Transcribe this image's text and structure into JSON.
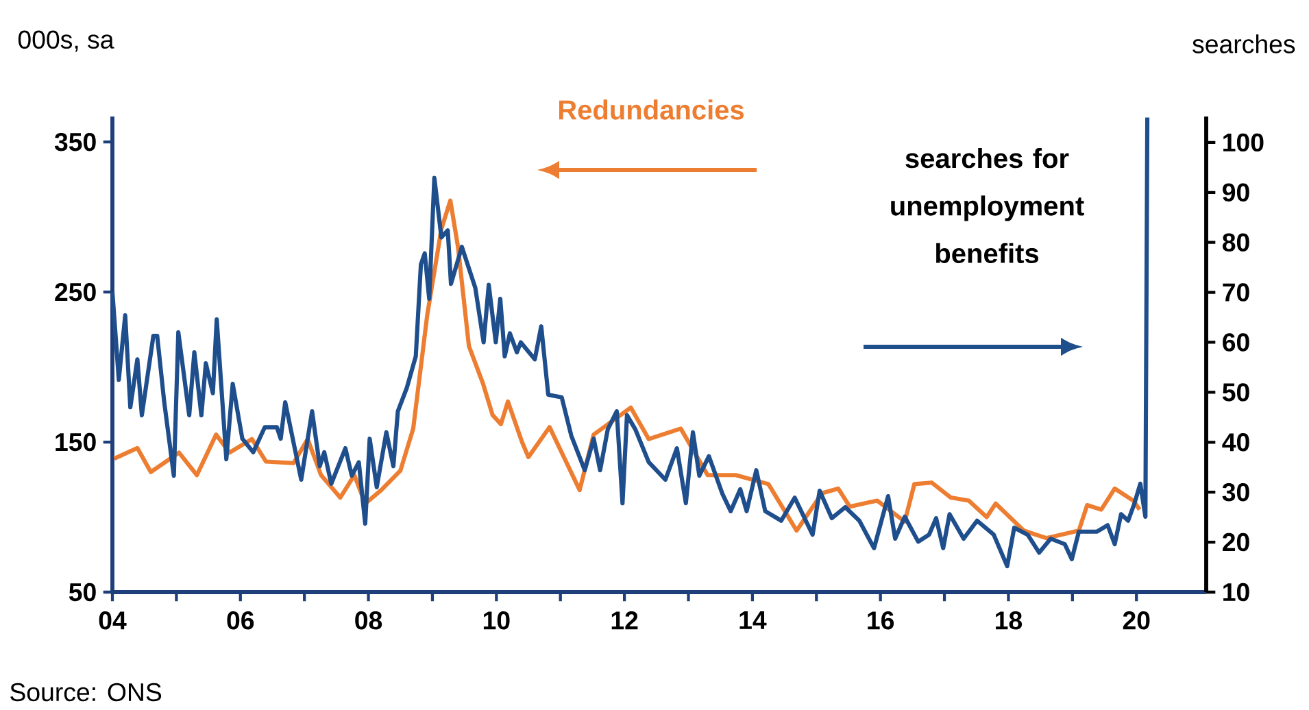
{
  "chart_data": {
    "type": "line",
    "ylabel": "000s, sa",
    "y2label": "searches",
    "annotations": [
      "Source: ONS"
    ],
    "xlim": [
      2004,
      2021.09
    ],
    "ylim": [
      50,
      367
    ],
    "y2lim": [
      10,
      105.2
    ],
    "xticks": [
      {
        "value": 2004,
        "label": "04"
      },
      {
        "value": 2005,
        "label": null
      },
      {
        "value": 2006,
        "label": "06"
      },
      {
        "value": 2007,
        "label": null
      },
      {
        "value": 2008,
        "label": "08"
      },
      {
        "value": 2009,
        "label": null
      },
      {
        "value": 2010,
        "label": "10"
      },
      {
        "value": 2011,
        "label": null
      },
      {
        "value": 2012,
        "label": "12"
      },
      {
        "value": 2013,
        "label": null
      },
      {
        "value": 2014,
        "label": "14"
      },
      {
        "value": 2015,
        "label": null
      },
      {
        "value": 2016,
        "label": "16"
      },
      {
        "value": 2017,
        "label": null
      },
      {
        "value": 2018,
        "label": "18"
      },
      {
        "value": 2019,
        "label": null
      },
      {
        "value": 2020,
        "label": "20"
      }
    ],
    "yticks": [
      50,
      150,
      250,
      350
    ],
    "y2ticks": [
      10,
      20,
      30,
      40,
      50,
      60,
      70,
      80,
      90,
      100
    ],
    "series": [
      {
        "name": "Redundancies",
        "color": "#ed7d31",
        "x": [
          2004.03,
          2004.39,
          2004.6,
          2005.04,
          2005.32,
          2005.62,
          2005.83,
          2006.18,
          2006.4,
          2006.83,
          2007.05,
          2007.26,
          2007.56,
          2007.78,
          2007.95,
          2008.2,
          2008.5,
          2008.7,
          2008.92,
          2009.14,
          2009.28,
          2009.4,
          2009.57,
          2009.79,
          2009.94,
          2010.07,
          2010.18,
          2010.4,
          2010.5,
          2010.83,
          2011.3,
          2011.52,
          2012.1,
          2012.38,
          2012.88,
          2013.3,
          2013.74,
          2014.25,
          2014.69,
          2015.09,
          2015.34,
          2015.52,
          2015.95,
          2016.38,
          2016.53,
          2016.8,
          2017.1,
          2017.38,
          2017.66,
          2017.8,
          2018.24,
          2018.59,
          2019.1,
          2019.23,
          2019.45,
          2019.66,
          2019.95,
          2020.05
        ],
        "values": [
          139,
          146,
          130,
          143,
          128,
          155,
          143,
          152,
          137,
          136,
          152,
          128,
          113,
          128,
          109,
          118,
          131,
          159,
          235,
          292,
          311,
          280,
          214,
          189,
          168,
          162,
          177,
          150,
          140,
          160,
          118,
          155,
          173,
          152,
          159,
          128,
          128,
          122,
          91,
          116,
          119,
          107,
          111,
          97,
          122,
          123,
          113,
          111,
          100,
          109,
          91,
          86,
          91,
          108,
          105,
          119,
          111,
          105
        ]
      },
      {
        "name": "searches for unemployment benefits",
        "color": "#1f4e8c",
        "axis": "y2",
        "x": [
          2004.0,
          2004.1,
          2004.2,
          2004.28,
          2004.39,
          2004.46,
          2004.64,
          2004.7,
          2004.81,
          2004.96,
          2005.03,
          2005.2,
          2005.28,
          2005.39,
          2005.46,
          2005.57,
          2005.63,
          2005.78,
          2005.88,
          2006.03,
          2006.2,
          2006.38,
          2006.57,
          2006.63,
          2006.7,
          2006.95,
          2007.12,
          2007.24,
          2007.31,
          2007.42,
          2007.64,
          2007.74,
          2007.85,
          2007.95,
          2008.02,
          2008.13,
          2008.28,
          2008.39,
          2008.46,
          2008.6,
          2008.74,
          2008.82,
          2008.88,
          2008.95,
          2009.03,
          2009.14,
          2009.24,
          2009.29,
          2009.46,
          2009.67,
          2009.8,
          2009.88,
          2009.99,
          2010.06,
          2010.13,
          2010.21,
          2010.32,
          2010.38,
          2010.6,
          2010.7,
          2010.81,
          2011.02,
          2011.17,
          2011.38,
          2011.52,
          2011.62,
          2011.74,
          2011.88,
          2011.97,
          2012.04,
          2012.17,
          2012.38,
          2012.64,
          2012.82,
          2012.96,
          2013.07,
          2013.17,
          2013.32,
          2013.53,
          2013.66,
          2013.81,
          2013.91,
          2014.06,
          2014.2,
          2014.45,
          2014.66,
          2014.94,
          2015.05,
          2015.24,
          2015.45,
          2015.67,
          2015.9,
          2016.12,
          2016.23,
          2016.38,
          2016.59,
          2016.76,
          2016.87,
          2016.98,
          2017.08,
          2017.3,
          2017.51,
          2017.77,
          2017.98,
          2018.09,
          2018.3,
          2018.48,
          2018.66,
          2018.88,
          2018.99,
          2019.1,
          2019.38,
          2019.55,
          2019.66,
          2019.76,
          2019.87,
          2019.97,
          2020.06,
          2020.14,
          2020.17
        ],
        "values": [
          70.1,
          52.5,
          65.4,
          47,
          56.6,
          45.4,
          61.3,
          61.3,
          48,
          33.3,
          62,
          45.4,
          58,
          45.4,
          55.8,
          49.8,
          64.6,
          36.6,
          51.7,
          40.7,
          38,
          43,
          43,
          40.7,
          48,
          32.5,
          46.2,
          35.2,
          38,
          31.7,
          38.8,
          33.3,
          36,
          23.7,
          40.7,
          31,
          42,
          35.2,
          46.2,
          50.9,
          57.2,
          75.6,
          77.8,
          68.7,
          92.9,
          81,
          82.4,
          71.7,
          79.1,
          70.9,
          60,
          71.5,
          60,
          68.7,
          57.2,
          61.8,
          58,
          60,
          56.6,
          63.2,
          49.5,
          49,
          41.3,
          34.4,
          40.7,
          34.4,
          42.6,
          46.2,
          27.8,
          45.4,
          42.6,
          36,
          32.5,
          38.8,
          27.8,
          42,
          33.3,
          37.2,
          29.7,
          26.2,
          30.6,
          26.2,
          34.4,
          26.2,
          24.3,
          28.9,
          21.5,
          30.3,
          24.8,
          27,
          24.3,
          18.8,
          29.2,
          20.7,
          25.1,
          20.1,
          21.5,
          24.8,
          18.8,
          25.6,
          20.7,
          24.3,
          21.5,
          15.2,
          22.9,
          21.5,
          17.9,
          20.7,
          19.6,
          16.6,
          22.1,
          22.1,
          23.4,
          19.6,
          25.6,
          24.3,
          27.8,
          31.7,
          25.1,
          105
        ]
      }
    ]
  }
}
